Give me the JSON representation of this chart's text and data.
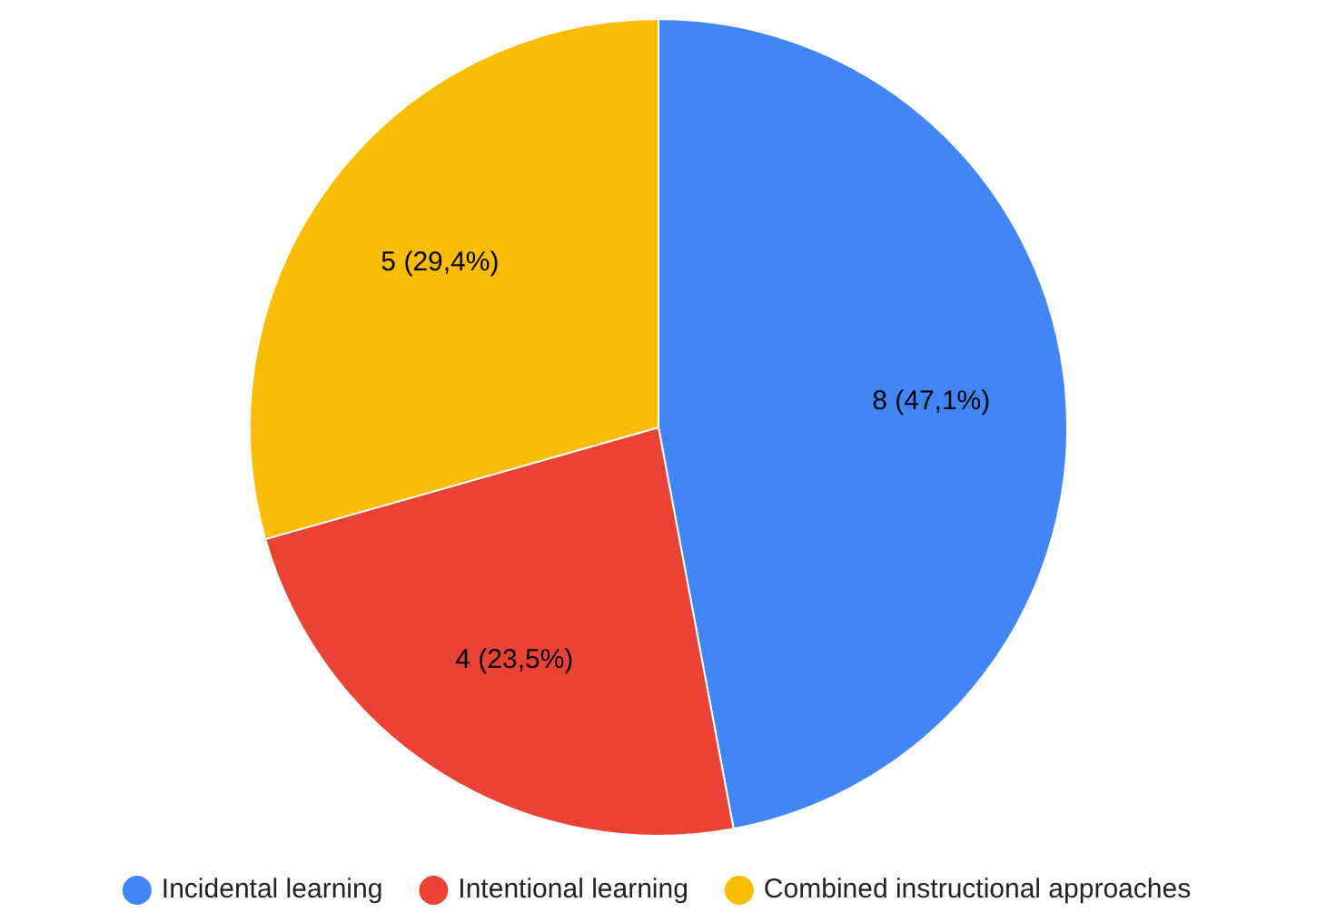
{
  "chart_data": {
    "type": "pie",
    "categories": [
      "Incidental learning",
      "Intentional learning",
      "Combined instructional approaches"
    ],
    "values": [
      8,
      4,
      5
    ],
    "colors": [
      "#4285f4",
      "#ea4335",
      "#fbbc04"
    ],
    "value_labels": [
      "8 (47,1%)",
      "4 (23,5%)",
      "5 (29,4%)"
    ],
    "legend": "bottom"
  }
}
